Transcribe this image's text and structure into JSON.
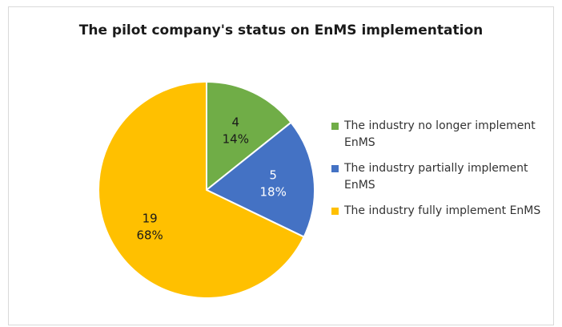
{
  "chart_data": {
    "type": "pie",
    "title": "The pilot company's status on EnMS implementation",
    "categories": [
      "The industry no longer implement EnMS",
      "The industry partially implement EnMS",
      "The industry fully implement EnMS"
    ],
    "values": [
      4,
      5,
      19
    ],
    "percent_labels": [
      "14%",
      "18%",
      "68%"
    ],
    "colors": [
      "#70ad47",
      "#4472c4",
      "#ffc000"
    ],
    "legend_position": "right",
    "start_angle": "12 o'clock, clockwise"
  }
}
